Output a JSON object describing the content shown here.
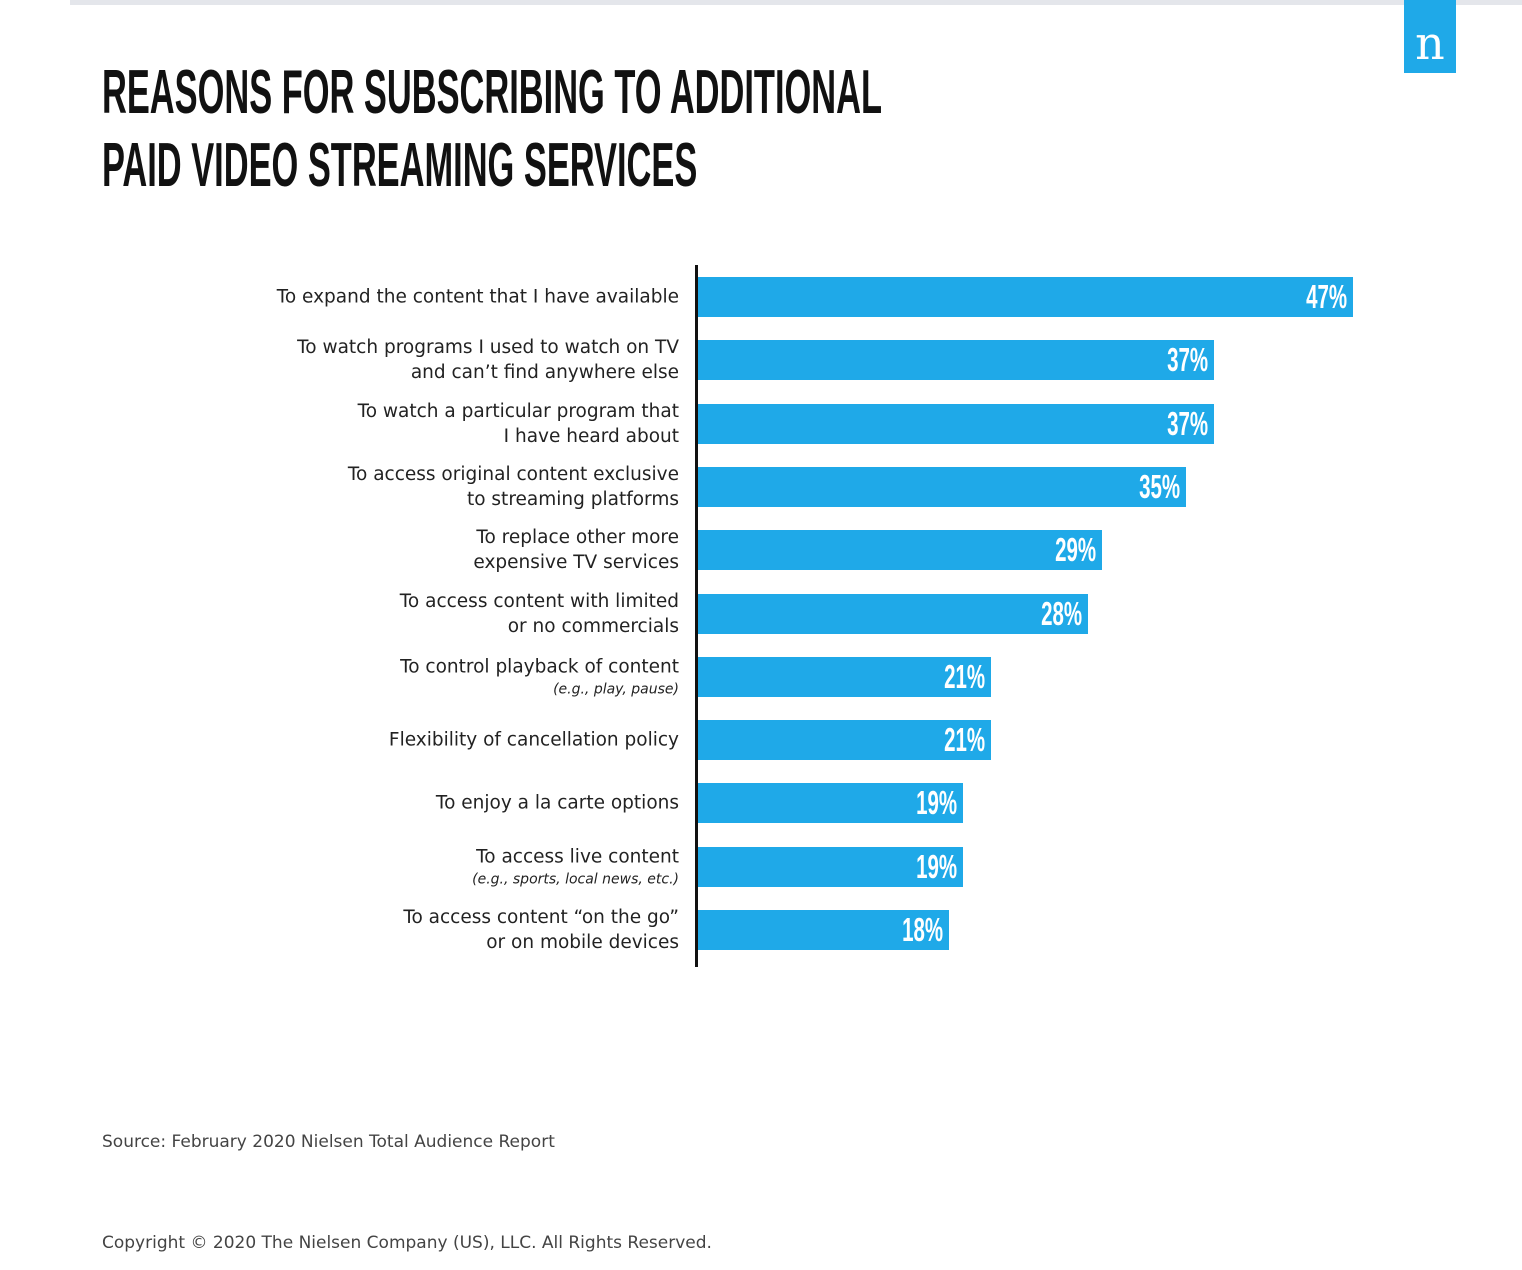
{
  "logo": "n",
  "chart_data": {
    "type": "bar",
    "orientation": "horizontal",
    "title": "REASONS FOR SUBSCRIBING TO ADDITIONAL\nPAID VIDEO STREAMING SERVICES",
    "categories": [
      "To expand the content that I have available",
      "To watch programs I used to watch on TV\nand can’t find anywhere else",
      "To watch a particular program that\nI have heard about",
      "To access original content exclusive\nto streaming platforms",
      "To replace other more\nexpensive TV services",
      "To access content with limited\nor no commercials",
      "To control playback of content",
      "Flexibility of cancellation policy",
      "To enjoy a la carte options",
      "To access live content",
      "To access content “on the go”\nor on mobile devices"
    ],
    "category_notes": [
      null,
      null,
      null,
      null,
      null,
      null,
      "(e.g., play, pause)",
      null,
      null,
      "(e.g., sports, local news, etc.)",
      null
    ],
    "values": [
      47,
      37,
      37,
      35,
      29,
      28,
      21,
      21,
      19,
      19,
      18
    ],
    "value_labels": [
      "47%",
      "37%",
      "37%",
      "35%",
      "29%",
      "28%",
      "21%",
      "21%",
      "19%",
      "19%",
      "18%"
    ],
    "color": "#1fa9e8"
  },
  "source": "Source: February 2020 Nielsen Total Audience Report",
  "copyright": "Copyright © 2020 The Nielsen Company (US), LLC. All Rights Reserved."
}
